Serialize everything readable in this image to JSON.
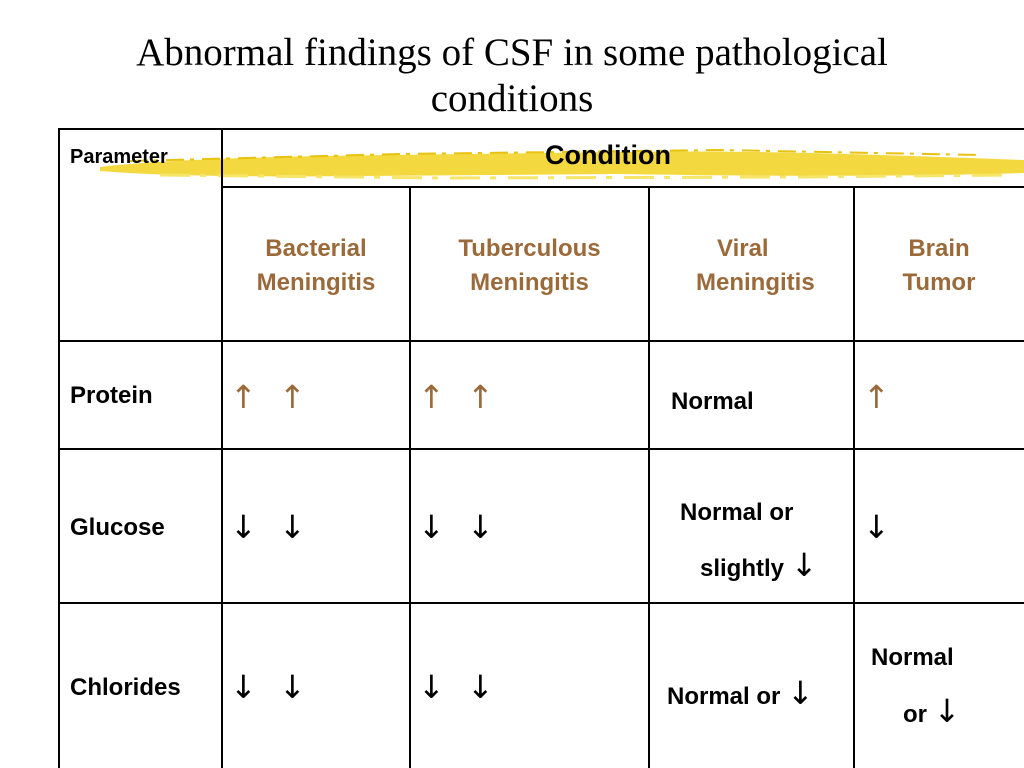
{
  "title": {
    "line1": "Abnormal findings of CSF in some pathological",
    "line2": "conditions"
  },
  "colors": {
    "header_text": "#9b6a3a",
    "highlight": "#f2d42a",
    "grid": "#000000"
  },
  "table": {
    "parameter_header": "Parameter",
    "condition_header": "Condition",
    "conditions": [
      {
        "line1": "Bacterial",
        "line2": "Meningitis"
      },
      {
        "line1": "Tuberculous",
        "line2": "Meningitis"
      },
      {
        "line1": "Viral",
        "line2": "Meningitis"
      },
      {
        "line1": "Brain",
        "line2": "Tumor"
      }
    ],
    "rows": [
      {
        "parameter": "Protein",
        "bacterial": "↑ ↑",
        "tuberculous": "↑ ↑",
        "viral": "Normal",
        "tumor": "↑"
      },
      {
        "parameter": "Glucose",
        "bacterial": "↓ ↓",
        "tuberculous": "↓ ↓",
        "viral_line1": "Normal or",
        "viral_line2": "slightly",
        "viral_arrow": "↓",
        "tumor": "↓"
      },
      {
        "parameter": "Chlorides",
        "bacterial": "↓ ↓",
        "tuberculous": "↓ ↓",
        "viral_text": "Normal or",
        "viral_arrow": "↓",
        "tumor_line1": "Normal",
        "tumor_line2": "or",
        "tumor_arrow": "↓"
      }
    ]
  }
}
